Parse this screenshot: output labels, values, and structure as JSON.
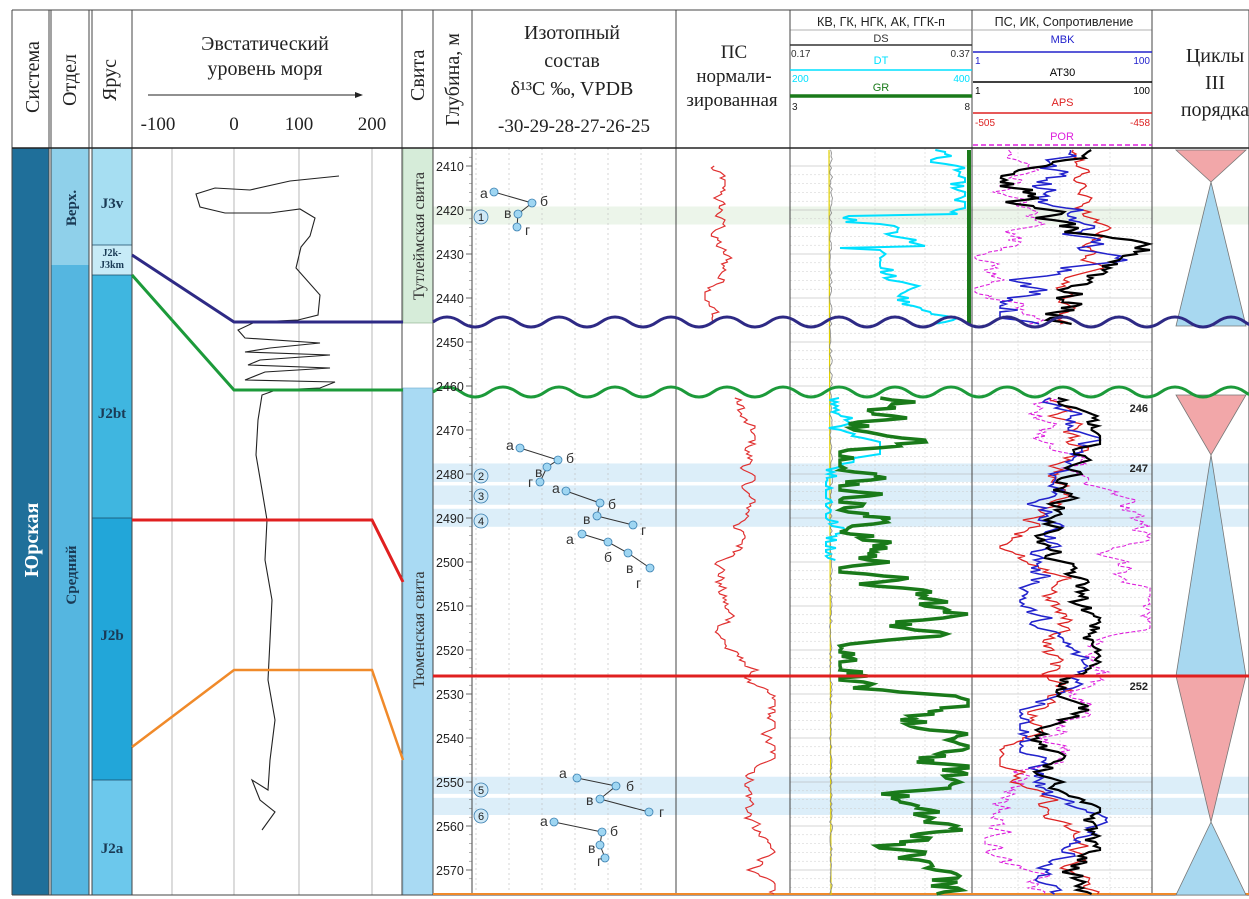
{
  "headers": {
    "system": "Система",
    "department": "Отдел",
    "stage": "Ярус",
    "eustatic_title_l1": "Эвстатический",
    "eustatic_title_l2": "уровень моря",
    "eustatic_ticks": [
      "-100",
      "0",
      "100",
      "200"
    ],
    "formation": "Свита",
    "depth": "Глубина, м",
    "isotope_l1": "Изотопный",
    "isotope_l2": "состав",
    "isotope_l3": "δ¹³C ‰, VPDB",
    "isotope_ticks": "-30-29-28-27-26-25",
    "ps_l1": "ПС",
    "ps_l2": "нормали-",
    "ps_l3": "зированная",
    "logs1_title": "КВ, ГК, НГК, АК, ГГК-п",
    "logs2_title": "ПС, ИК, Сопротивление",
    "cycles_l1": "Циклы",
    "cycles_l2": "III",
    "cycles_l3": "порядка"
  },
  "curve_scales": {
    "ds": {
      "name": "DS",
      "min": "0.17",
      "max": "0.37",
      "color": "#333333"
    },
    "dt": {
      "name": "DT",
      "min": "200",
      "max": "400",
      "color": "#00e0ff"
    },
    "gr": {
      "name": "GR",
      "min": "3",
      "max": "8",
      "color": "#1a7a1a"
    },
    "mbk": {
      "name": "MBK",
      "min": "1",
      "max": "100",
      "color": "#2222cc"
    },
    "at30": {
      "name": "AT30",
      "min": "1",
      "max": "100",
      "color": "#000000"
    },
    "aps": {
      "name": "APS",
      "min": "-505",
      "max": "-458",
      "color": "#dd2222"
    },
    "por": {
      "name": "POR",
      "color": "#dd22dd"
    }
  },
  "units": {
    "system": "Юрская",
    "department_upper": "Верх.",
    "department_middle": "Средний",
    "stages": [
      "J3v",
      "J2k-J3km",
      "J2bt",
      "J2b",
      "J2a"
    ],
    "formation_upper": "Тутлеймская свита",
    "formation_lower": "Тюменская свита"
  },
  "depth_ticks": [
    "2410",
    "2420",
    "2430",
    "2440",
    "2450",
    "2460",
    "2470",
    "2480",
    "2490",
    "2500",
    "2510",
    "2520",
    "2530",
    "2540",
    "2550",
    "2560",
    "2570"
  ],
  "sample_zones": [
    "1",
    "2",
    "3",
    "4",
    "5",
    "6"
  ],
  "point_labels": [
    "а",
    "б",
    "в",
    "г"
  ],
  "core_marks": [
    "246",
    "247",
    "252"
  ],
  "colors": {
    "system_fill": "#1f6f9a",
    "department_fill": "#55b6e0",
    "upper_fill": "#8fd0ea",
    "stage_fill": "#74c6e8",
    "formation_upper_fill": "#d6ecd9",
    "formation_lower_fill": "#a9daf3",
    "boundary_navy": "#2e2a85",
    "boundary_green": "#1c9a3a",
    "boundary_red": "#e02020",
    "boundary_orange": "#f08a2a",
    "cycle_pink": "#f2a7a9",
    "cycle_blue": "#a8d8f0"
  }
}
